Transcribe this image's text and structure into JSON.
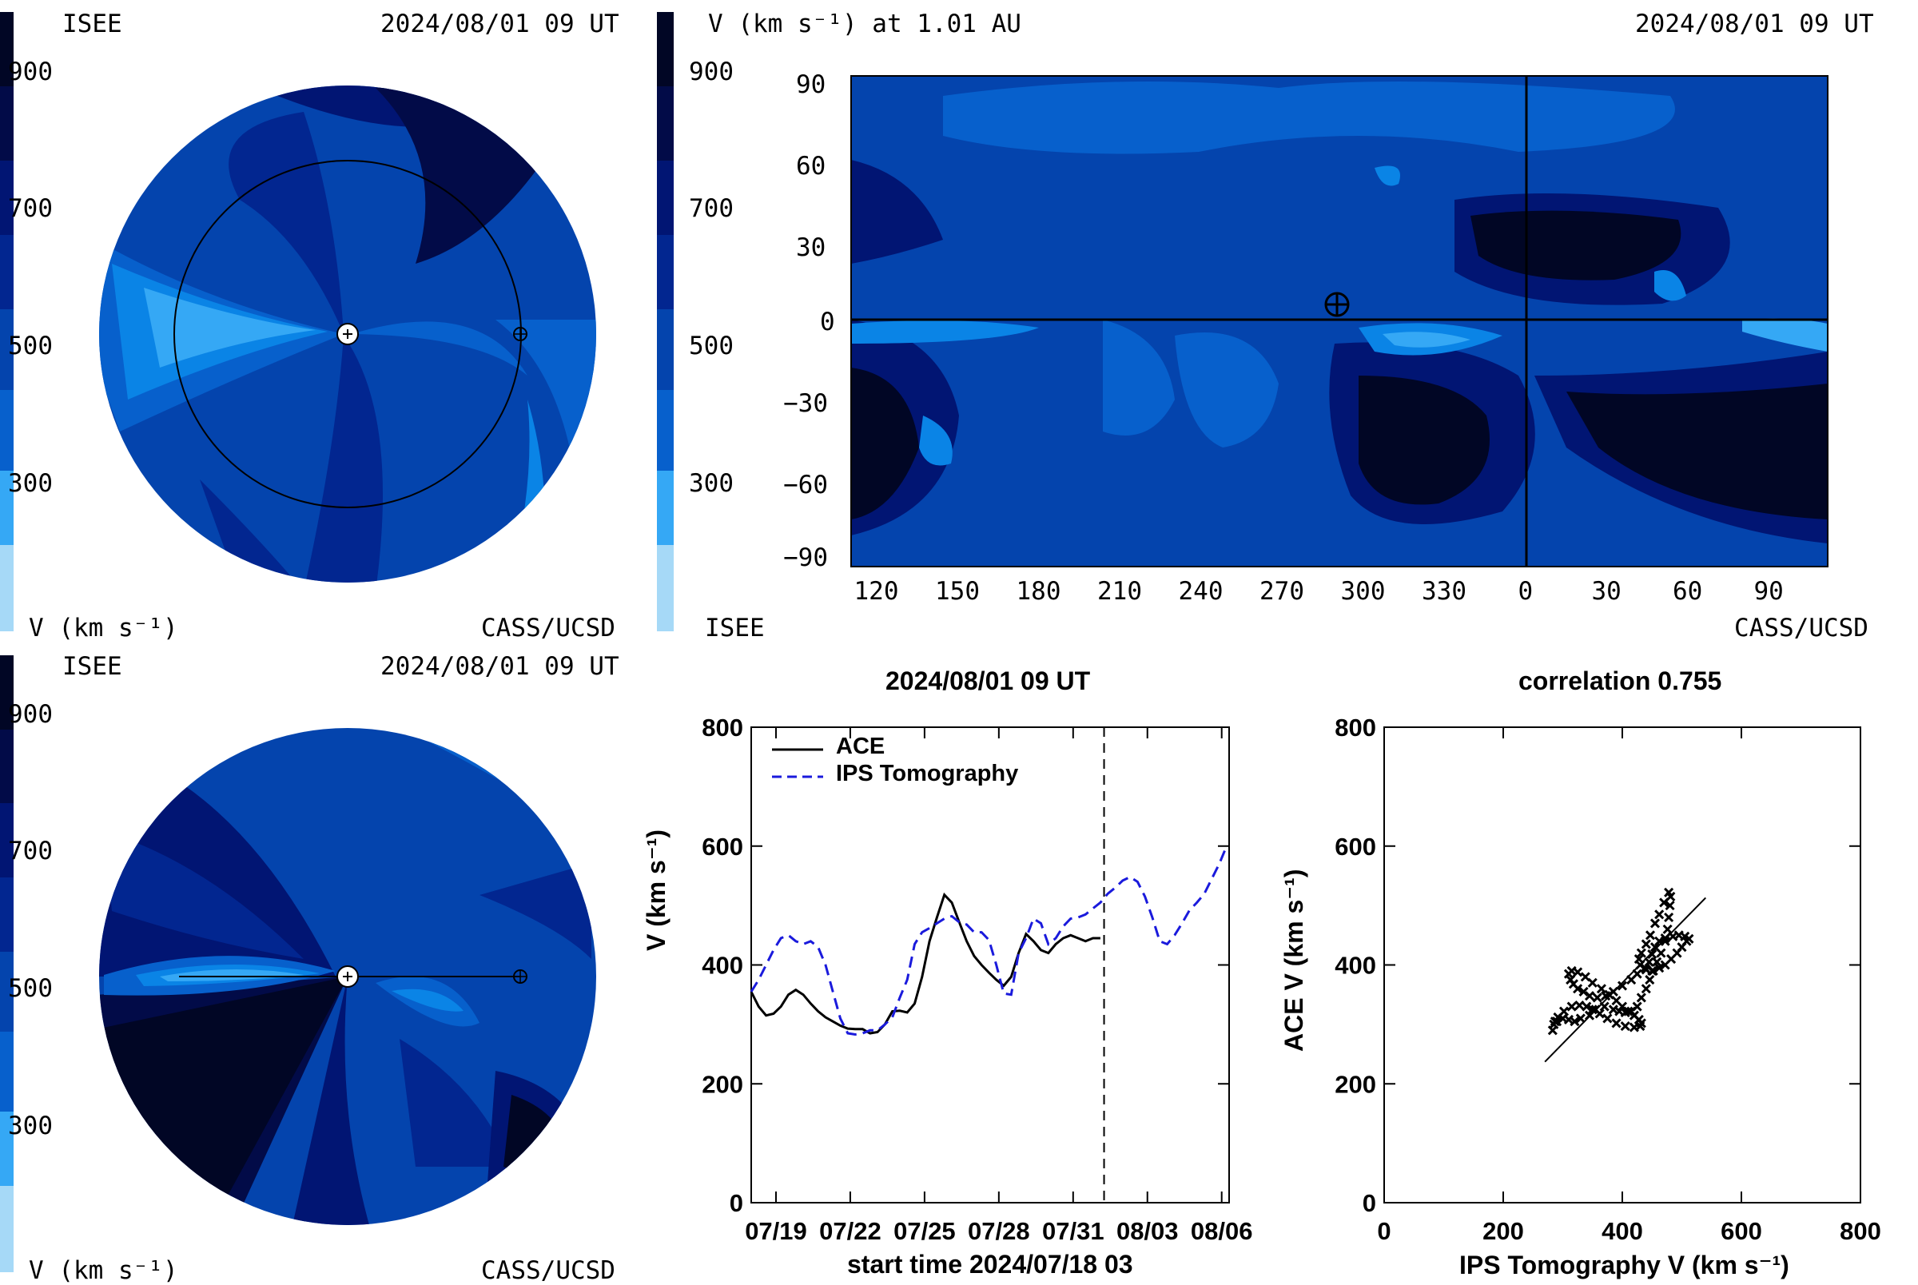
{
  "panels": {
    "polar_top": {
      "header_left": "ISEE",
      "header_right": "2024/08/01 09 UT",
      "footer_left": "V (km s⁻¹)",
      "footer_right": "CASS/UCSD",
      "colorbar_ticks": [
        "900",
        "700",
        "500",
        "300"
      ]
    },
    "map": {
      "title": "V (km s⁻¹) at 1.01 AU",
      "date": "2024/08/01 09 UT",
      "footer_left": "ISEE",
      "footer_right": "CASS/UCSD",
      "colorbar_ticks": [
        "900",
        "700",
        "500",
        "300"
      ],
      "y_ticks": [
        "90",
        "60",
        "30",
        "0",
        "−30",
        "−60",
        "−90"
      ],
      "x_ticks": [
        "120",
        "150",
        "180",
        "210",
        "240",
        "270",
        "300",
        "330",
        "0",
        "30",
        "60",
        "90"
      ]
    },
    "polar_bottom": {
      "header_left": "ISEE",
      "header_right": "2024/08/01 09 UT",
      "footer_left": "V (km s⁻¹)",
      "footer_right": "CASS/UCSD",
      "colorbar_ticks": [
        "900",
        "700",
        "500",
        "300"
      ]
    },
    "timeseries": {
      "title": "2024/08/01 09 UT",
      "ylabel": "V (km s⁻¹)",
      "xlabel": "start time 2024/07/18 03",
      "legend": [
        "ACE",
        "IPS Tomography"
      ]
    },
    "scatter": {
      "title": "correlation 0.755",
      "xlabel": "IPS Tomography V (km s⁻¹)",
      "ylabel": "ACE V (km s⁻¹)"
    }
  },
  "colors": {
    "palette": [
      "#a6d9f7",
      "#35a8f5",
      "#0a84e6",
      "#0760cc",
      "#0444ad",
      "#022690",
      "#011573",
      "#020b48",
      "#010625"
    ],
    "ace": "#000000",
    "ips": "#1a1adc"
  },
  "chart_data": [
    {
      "type": "line",
      "title": "2024/08/01 09 UT",
      "xlabel": "start time 2024/07/18 03",
      "ylabel": "V (km s⁻¹)",
      "x_tick_labels": [
        "07/19",
        "07/22",
        "07/25",
        "07/28",
        "07/31",
        "08/03",
        "08/06"
      ],
      "x_tick_days": [
        1,
        4,
        7,
        10,
        13,
        16,
        19
      ],
      "xlim_days": [
        0,
        19.3
      ],
      "ylim": [
        0,
        800
      ],
      "y_ticks": [
        0,
        200,
        400,
        600,
        800
      ],
      "current_time_day": 14.25,
      "legend_position": "top-left",
      "series": [
        {
          "name": "ACE",
          "style": "solid",
          "x": [
            0,
            0.3,
            0.6,
            0.9,
            1.2,
            1.5,
            1.8,
            2.1,
            2.4,
            2.7,
            3.0,
            3.3,
            3.6,
            3.9,
            4.2,
            4.5,
            4.8,
            5.1,
            5.4,
            5.7,
            6.0,
            6.3,
            6.6,
            6.9,
            7.2,
            7.5,
            7.8,
            8.1,
            8.4,
            8.7,
            9.0,
            9.3,
            9.6,
            9.9,
            10.2,
            10.5,
            10.8,
            11.1,
            11.4,
            11.7,
            12.0,
            12.3,
            12.6,
            12.9,
            13.2,
            13.5,
            13.8,
            14.1
          ],
          "values": [
            355,
            330,
            315,
            318,
            330,
            350,
            358,
            350,
            335,
            322,
            312,
            305,
            298,
            293,
            292,
            292,
            285,
            287,
            300,
            322,
            323,
            320,
            335,
            380,
            440,
            480,
            518,
            505,
            472,
            440,
            415,
            400,
            387,
            375,
            365,
            380,
            420,
            452,
            440,
            425,
            420,
            435,
            445,
            450,
            445,
            440,
            445,
            445
          ]
        },
        {
          "name": "IPS Tomography",
          "style": "dashed",
          "x": [
            0,
            0.3,
            0.6,
            0.9,
            1.2,
            1.5,
            1.8,
            2.1,
            2.4,
            2.7,
            3.0,
            3.3,
            3.6,
            3.9,
            4.2,
            4.5,
            4.8,
            5.1,
            5.4,
            5.7,
            6.0,
            6.3,
            6.6,
            6.9,
            7.2,
            7.5,
            7.8,
            8.1,
            8.4,
            8.7,
            9.0,
            9.3,
            9.6,
            9.9,
            10.2,
            10.5,
            10.8,
            11.1,
            11.4,
            11.7,
            12.0,
            12.3,
            12.6,
            12.9,
            13.2,
            13.5,
            13.8,
            14.1,
            14.4,
            14.7,
            15.0,
            15.3,
            15.6,
            15.9,
            16.2,
            16.5,
            16.8,
            17.1,
            17.4,
            17.7,
            18.0,
            18.3,
            18.6,
            18.9,
            19.2
          ],
          "values": [
            355,
            375,
            400,
            425,
            445,
            450,
            440,
            435,
            440,
            430,
            400,
            355,
            310,
            285,
            283,
            285,
            290,
            290,
            300,
            312,
            345,
            375,
            435,
            455,
            462,
            470,
            478,
            482,
            472,
            468,
            455,
            455,
            442,
            400,
            352,
            350,
            420,
            445,
            478,
            470,
            435,
            445,
            465,
            478,
            480,
            485,
            495,
            505,
            520,
            530,
            542,
            548,
            540,
            515,
            480,
            440,
            435,
            450,
            470,
            492,
            505,
            520,
            545,
            570,
            600
          ]
        }
      ]
    },
    {
      "type": "scatter",
      "title": "correlation 0.755",
      "xlabel": "IPS Tomography V (km s⁻¹)",
      "ylabel": "ACE V (km s⁻¹)",
      "xlim": [
        0,
        800
      ],
      "ylim": [
        0,
        800
      ],
      "x_ticks": [
        0,
        200,
        400,
        600,
        800
      ],
      "y_ticks": [
        0,
        200,
        400,
        600,
        800
      ],
      "fit_line": {
        "x": [
          270,
          540
        ],
        "y": [
          237,
          513
        ]
      },
      "points": [
        [
          283,
          290
        ],
        [
          285,
          300
        ],
        [
          290,
          305
        ],
        [
          300,
          310
        ],
        [
          310,
          308
        ],
        [
          320,
          305
        ],
        [
          330,
          310
        ],
        [
          345,
          315
        ],
        [
          355,
          325
        ],
        [
          370,
          330
        ],
        [
          385,
          325
        ],
        [
          395,
          322
        ],
        [
          405,
          320
        ],
        [
          415,
          322
        ],
        [
          425,
          330
        ],
        [
          432,
          345
        ],
        [
          440,
          360
        ],
        [
          446,
          375
        ],
        [
          452,
          390
        ],
        [
          458,
          405
        ],
        [
          465,
          420
        ],
        [
          472,
          440
        ],
        [
          476,
          460
        ],
        [
          478,
          480
        ],
        [
          480,
          500
        ],
        [
          481,
          515
        ],
        [
          478,
          522
        ],
        [
          470,
          505
        ],
        [
          462,
          485
        ],
        [
          455,
          470
        ],
        [
          447,
          450
        ],
        [
          440,
          435
        ],
        [
          432,
          420
        ],
        [
          428,
          410
        ],
        [
          430,
          400
        ],
        [
          440,
          392
        ],
        [
          450,
          390
        ],
        [
          462,
          395
        ],
        [
          472,
          400
        ],
        [
          482,
          410
        ],
        [
          492,
          420
        ],
        [
          500,
          430
        ],
        [
          508,
          440
        ],
        [
          512,
          444
        ],
        [
          505,
          448
        ],
        [
          495,
          450
        ],
        [
          485,
          448
        ],
        [
          472,
          445
        ],
        [
          462,
          440
        ],
        [
          455,
          430
        ],
        [
          450,
          418
        ],
        [
          445,
          405
        ],
        [
          438,
          395
        ],
        [
          425,
          385
        ],
        [
          415,
          375
        ],
        [
          400,
          365
        ],
        [
          385,
          355
        ],
        [
          372,
          348
        ],
        [
          358,
          345
        ],
        [
          345,
          348
        ],
        [
          335,
          355
        ],
        [
          325,
          360
        ],
        [
          318,
          368
        ],
        [
          313,
          375
        ],
        [
          310,
          385
        ],
        [
          315,
          390
        ],
        [
          325,
          388
        ],
        [
          338,
          380
        ],
        [
          350,
          370
        ],
        [
          365,
          360
        ],
        [
          378,
          350
        ],
        [
          390,
          340
        ],
        [
          400,
          330
        ],
        [
          410,
          322
        ],
        [
          420,
          315
        ],
        [
          428,
          308
        ],
        [
          432,
          302
        ],
        [
          430,
          297
        ],
        [
          420,
          295
        ],
        [
          405,
          297
        ],
        [
          390,
          302
        ],
        [
          375,
          310
        ],
        [
          362,
          318
        ],
        [
          350,
          325
        ],
        [
          340,
          330
        ],
        [
          328,
          332
        ],
        [
          315,
          330
        ],
        [
          302,
          322
        ],
        [
          292,
          312
        ],
        [
          287,
          305
        ]
      ]
    }
  ]
}
